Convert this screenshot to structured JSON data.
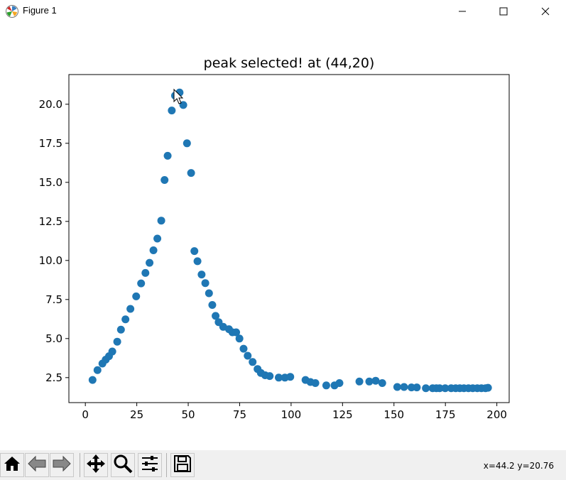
{
  "window": {
    "title": "Figure 1",
    "app_icon": "matplotlib-icon",
    "controls": [
      "minimize-icon",
      "maximize-icon",
      "close-icon"
    ]
  },
  "toolbar": {
    "buttons": [
      "home-icon",
      "back-icon",
      "forward-icon",
      "pan-icon",
      "zoom-icon",
      "configure-subplots-icon",
      "save-icon"
    ],
    "coords": "x=44.2  y=20.76"
  },
  "chart_data": {
    "type": "scatter",
    "title": "peak selected! at (44,20)",
    "xlabel": "",
    "ylabel": "",
    "xlim": [
      -8,
      206
    ],
    "ylim": [
      0.9,
      21.9
    ],
    "xticks": [
      0,
      25,
      50,
      75,
      100,
      125,
      150,
      175,
      200
    ],
    "xtick_labels": [
      "0",
      "25",
      "50",
      "75",
      "100",
      "125",
      "150",
      "175",
      "200"
    ],
    "yticks": [
      2.5,
      5.0,
      7.5,
      10.0,
      12.5,
      15.0,
      17.5,
      20.0
    ],
    "ytick_labels": [
      "2.5",
      "5.0",
      "7.5",
      "10.0",
      "12.5",
      "15.0",
      "17.5",
      "20.0"
    ],
    "grid": false,
    "marker_color": "#1f77b4",
    "x": [
      3.5,
      5.9,
      8.3,
      9.9,
      11.5,
      13.1,
      15.5,
      17.3,
      19.5,
      21.9,
      24.7,
      27.1,
      29.2,
      31.2,
      33.1,
      35.0,
      36.9,
      38.5,
      40.0,
      42.0,
      43.6,
      45.8,
      47.6,
      49.4,
      51.4,
      53.0,
      54.5,
      56.5,
      58.3,
      60.1,
      61.7,
      63.3,
      64.8,
      67.0,
      69.8,
      71.5,
      73.3,
      74.9,
      76.9,
      78.9,
      81.3,
      83.7,
      85.3,
      87.4,
      89.6,
      94.0,
      97.0,
      99.6,
      107.0,
      109.4,
      111.8,
      117.1,
      121.1,
      123.5,
      133.2,
      138.0,
      141.1,
      144.3,
      151.6,
      154.9,
      158.5,
      161.1,
      165.5,
      168.8,
      170.6,
      172.2,
      174.9,
      177.8,
      180.0,
      182.0,
      184.0,
      186.2,
      188.3,
      190.5,
      192.5,
      194.5,
      195.7
    ],
    "y": [
      2.35,
      2.98,
      3.4,
      3.65,
      3.87,
      4.17,
      4.8,
      5.57,
      6.23,
      6.9,
      7.7,
      8.53,
      9.2,
      9.85,
      10.65,
      11.4,
      12.55,
      15.15,
      16.7,
      19.6,
      20.55,
      20.75,
      19.95,
      17.5,
      15.6,
      10.6,
      9.95,
      9.1,
      8.55,
      7.9,
      7.15,
      6.45,
      6.05,
      5.75,
      5.6,
      5.4,
      5.4,
      5.0,
      4.35,
      3.9,
      3.5,
      3.05,
      2.8,
      2.65,
      2.6,
      2.5,
      2.5,
      2.55,
      2.35,
      2.22,
      2.15,
      2.0,
      2.0,
      2.15,
      2.25,
      2.25,
      2.3,
      2.15,
      1.9,
      1.9,
      1.87,
      1.87,
      1.82,
      1.82,
      1.82,
      1.82,
      1.82,
      1.82,
      1.82,
      1.82,
      1.82,
      1.82,
      1.82,
      1.82,
      1.82,
      1.82,
      1.85
    ]
  }
}
